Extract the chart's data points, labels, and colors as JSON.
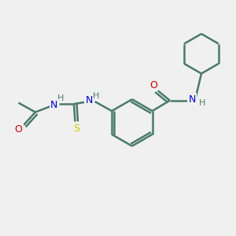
{
  "background_color": "#f0f0f0",
  "bond_color": "#4a7a6a",
  "N_color": "#0000cc",
  "O_color": "#cc0000",
  "S_color": "#cccc00",
  "line_width": 1.8,
  "figsize": [
    3.0,
    3.0
  ],
  "dpi": 100,
  "xlim": [
    0,
    10
  ],
  "ylim": [
    0,
    10
  ]
}
